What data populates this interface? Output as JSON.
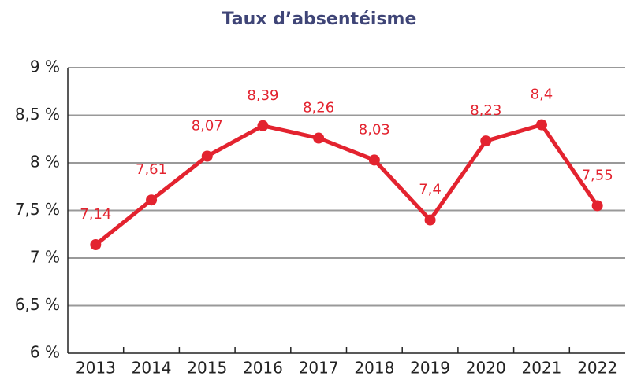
{
  "chart_data": {
    "type": "line",
    "title": "Taux d’absentéisme",
    "categories": [
      "2013",
      "2014",
      "2015",
      "2016",
      "2017",
      "2018",
      "2019",
      "2020",
      "2021",
      "2022"
    ],
    "series": [
      {
        "name": "Taux d’absentéisme",
        "color": "#e3232f",
        "values": [
          7.14,
          7.61,
          8.07,
          8.39,
          8.26,
          8.03,
          7.4,
          8.23,
          8.4,
          7.55
        ],
        "value_labels": [
          "7,14",
          "7,61",
          "8,07",
          "8,39",
          "8,26",
          "8,03",
          "7,4",
          "8,23",
          "8,4",
          "7,55"
        ]
      }
    ],
    "ylim": [
      6,
      9
    ],
    "yticks": [
      {
        "value": 6,
        "label": "6 %"
      },
      {
        "value": 6.5,
        "label": "6,5 %"
      },
      {
        "value": 7,
        "label": "7 %"
      },
      {
        "value": 7.5,
        "label": "7,5 %"
      },
      {
        "value": 8,
        "label": "8 %"
      },
      {
        "value": 8.5,
        "label": "8,5 %"
      },
      {
        "value": 9,
        "label": "9 %"
      }
    ],
    "grid": true
  }
}
